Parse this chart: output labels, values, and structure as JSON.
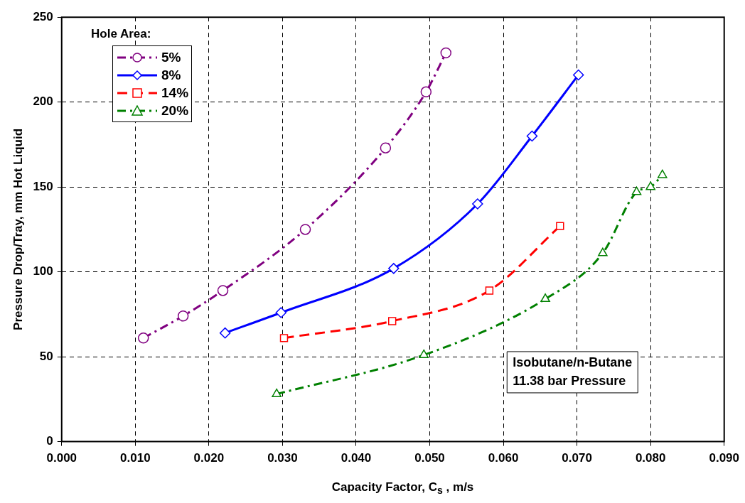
{
  "chart_data": {
    "type": "line",
    "xlabel": "Capacity Factor, C$_{s}$ , m/s",
    "ylabel": "Pressure Drop/Tray, mm Hot Liquid",
    "legend_title": "Hole Area:",
    "legend": "top left",
    "grid": true,
    "xlim": [
      0,
      0.09
    ],
    "xticks": [
      {
        "value": 0,
        "label": "0.000"
      },
      {
        "value": 0.01,
        "label": "0.010"
      },
      {
        "value": 0.02,
        "label": "0.020"
      },
      {
        "value": 0.03,
        "label": "0.030"
      },
      {
        "value": 0.04,
        "label": "0.040"
      },
      {
        "value": 0.05,
        "label": "0.050"
      },
      {
        "value": 0.06,
        "label": "0.060"
      },
      {
        "value": 0.07,
        "label": "0.070"
      },
      {
        "value": 0.08,
        "label": "0.080"
      },
      {
        "value": 0.09,
        "label": "0.090"
      }
    ],
    "ylim": [
      0,
      250
    ],
    "yticks": [
      0,
      50,
      100,
      150,
      200,
      250
    ],
    "annotations": [
      "Isobutane/n-Butane",
      "11.38 bar Pressure"
    ],
    "series": [
      {
        "name": "5%",
        "color": "#800080",
        "marker": "circle",
        "line_style": "dotted",
        "x": [
          0.0111,
          0.0165,
          0.0219,
          0.0331,
          0.044,
          0.0495,
          0.0522
        ],
        "values": [
          61,
          74,
          89,
          125,
          173,
          206,
          229
        ]
      },
      {
        "name": "8%",
        "color": "#0000ff",
        "marker": "diamond",
        "line_style": "solid",
        "x": [
          0.0222,
          0.0298,
          0.0451,
          0.0565,
          0.0639,
          0.0702
        ],
        "values": [
          64,
          76,
          102,
          140,
          180,
          216
        ]
      },
      {
        "name": "14%",
        "color": "#ff0000",
        "marker": "square",
        "line_style": "dashed",
        "x": [
          0.0302,
          0.0449,
          0.0581,
          0.0677
        ],
        "values": [
          61,
          71,
          89,
          127
        ]
      },
      {
        "name": "20%",
        "color": "#008000",
        "marker": "triangle",
        "line_style": "dotted",
        "x": [
          0.0292,
          0.0492,
          0.0657,
          0.0735,
          0.0781,
          0.08,
          0.0816
        ],
        "values": [
          28,
          51,
          84,
          111,
          147,
          150,
          157
        ]
      }
    ]
  }
}
